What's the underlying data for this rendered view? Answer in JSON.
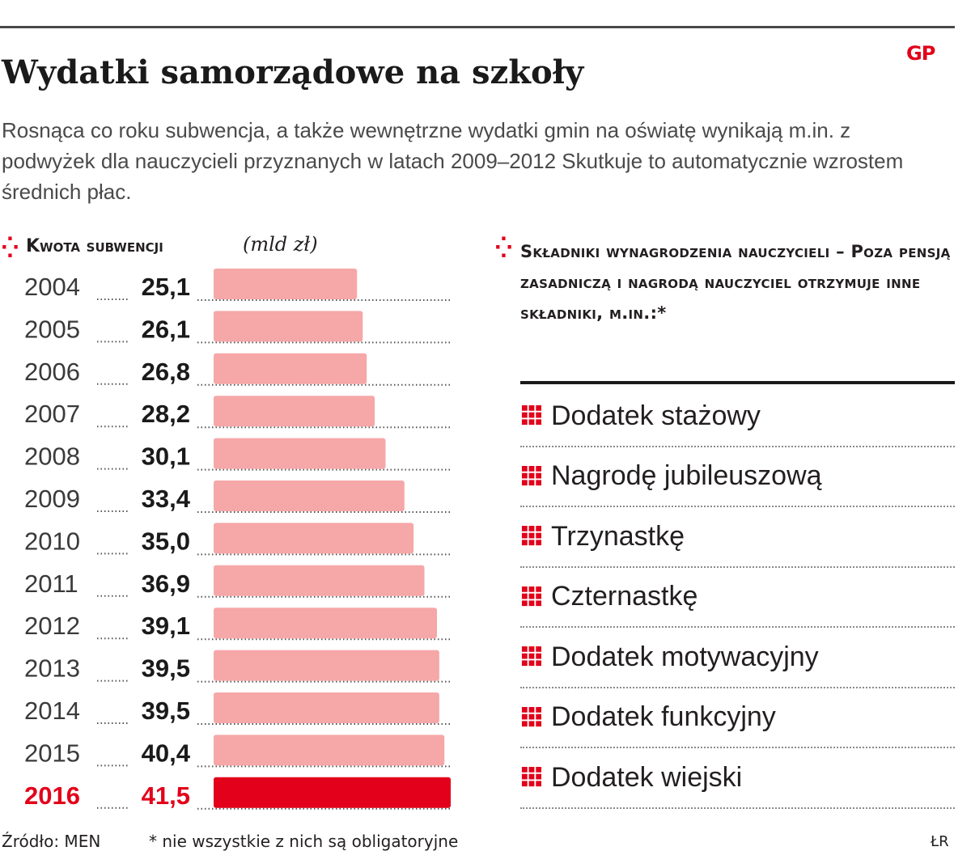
{
  "title": "Wydatki samorządowe na szkoły",
  "subtitle": "Rosnąca co roku subwencja, a także wewnętrzne wydatki gmin na oświatę wynikają m.in. z podwyżek dla nauczycieli przyznanych w latach 2009–2012 Skutkuje to automatycznie wzrostem średnich płac.",
  "logo": "GP",
  "section_marker": "⁛",
  "colors": {
    "bar": "#f6a7a8",
    "highlight": "#e2001a",
    "text": "#231f20"
  },
  "chart_data": {
    "type": "bar",
    "orientation": "horizontal",
    "title": "Kwota subwencji",
    "unit": "(mld zł)",
    "categories": [
      "2004",
      "2005",
      "2006",
      "2007",
      "2008",
      "2009",
      "2010",
      "2011",
      "2012",
      "2013",
      "2014",
      "2015",
      "2016"
    ],
    "value_labels": [
      "25,1",
      "26,1",
      "26,8",
      "28,2",
      "30,1",
      "33,4",
      "35,0",
      "36,9",
      "39,1",
      "39,5",
      "39,5",
      "40,4",
      "41,5"
    ],
    "values": [
      25.1,
      26.1,
      26.8,
      28.2,
      30.1,
      33.4,
      35.0,
      36.9,
      39.1,
      39.5,
      39.5,
      40.4,
      41.5
    ],
    "highlighted_category": "2016",
    "xlim": [
      0,
      41.5
    ],
    "grid": false
  },
  "components": {
    "heading": "Składniki wynagrodzenia nauczycieli – Poza pensją zasadniczą i nagrodą nauczyciel otrzymuje inne składniki, m.in.:*",
    "icon": "grid-icon",
    "items": [
      "Dodatek stażowy",
      "Nagrodę jubileuszową",
      "Trzynastkę",
      "Czternastkę",
      "Dodatek motywacyjny",
      "Dodatek funkcyjny",
      "Dodatek wiejski"
    ]
  },
  "footer": {
    "source": "Źródło: MEN",
    "note": "* nie wszystkie z nich są obligatoryjne",
    "credit": "ŁR"
  }
}
